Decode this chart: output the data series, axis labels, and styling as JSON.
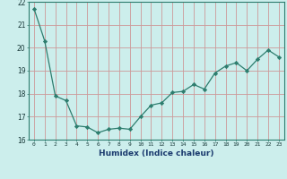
{
  "x": [
    0,
    1,
    2,
    3,
    4,
    5,
    6,
    7,
    8,
    9,
    10,
    11,
    12,
    13,
    14,
    15,
    16,
    17,
    18,
    19,
    20,
    21,
    22,
    23
  ],
  "y": [
    21.7,
    20.3,
    17.9,
    17.7,
    16.6,
    16.55,
    16.3,
    16.45,
    16.5,
    16.45,
    17.0,
    17.5,
    17.6,
    18.05,
    18.1,
    18.4,
    18.2,
    18.9,
    19.2,
    19.35,
    19.0,
    19.5,
    19.9,
    19.6
  ],
  "line_color": "#2d7d6e",
  "marker": "D",
  "marker_size": 2.2,
  "bg_color": "#cceeec",
  "grid_color": "#cc9999",
  "xlabel": "Humidex (Indice chaleur)",
  "xlim": [
    -0.5,
    23.5
  ],
  "ylim": [
    16.0,
    22.0
  ],
  "yticks": [
    16,
    17,
    18,
    19,
    20,
    21,
    22
  ],
  "xticks": [
    0,
    1,
    2,
    3,
    4,
    5,
    6,
    7,
    8,
    9,
    10,
    11,
    12,
    13,
    14,
    15,
    16,
    17,
    18,
    19,
    20,
    21,
    22,
    23
  ]
}
